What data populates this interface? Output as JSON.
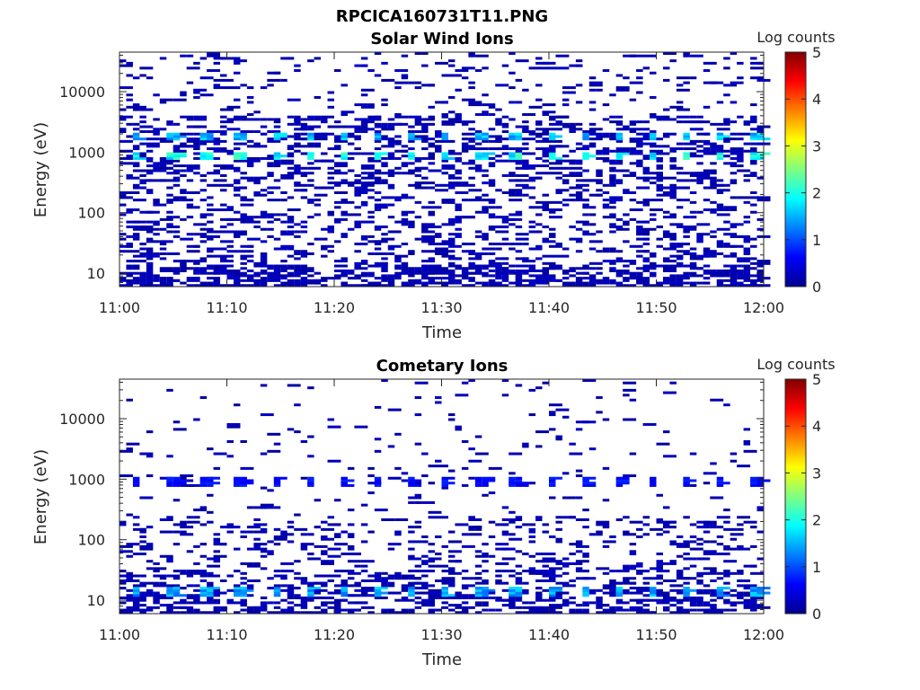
{
  "figure_title": "RPCICA160731T11.PNG",
  "colors": {
    "colormap": "jet",
    "colormap_stops": [
      "#00008f",
      "#0000ff",
      "#0080ff",
      "#00ffff",
      "#80ff80",
      "#ffff00",
      "#ff8000",
      "#ff0000",
      "#800000"
    ],
    "axes": "#262626",
    "background": "#ffffff"
  },
  "chart_data": [
    {
      "type": "heatmap",
      "title": "Solar Wind Ions",
      "xlabel": "Time",
      "ylabel": "Energy (eV)",
      "x_ticks": [
        "11:00",
        "11:10",
        "11:20",
        "11:30",
        "11:40",
        "11:50",
        "12:00"
      ],
      "x_range": [
        "11:00",
        "12:00"
      ],
      "y_scale": "log",
      "y_range": [
        6,
        45000
      ],
      "y_ticks": [
        "10",
        "100",
        "1000",
        "10000"
      ],
      "colorbar": {
        "label": "Log counts",
        "range": [
          0,
          5
        ],
        "ticks": [
          "0",
          "1",
          "2",
          "3",
          "4",
          "5"
        ]
      },
      "time_bins": 96,
      "energy_bins": 96,
      "scan_period_min": 3.2,
      "cycle_offset_min": 1.0,
      "peak_bands": [
        {
          "energy_ev": 880,
          "log_counts": 2.0
        },
        {
          "energy_ev": 1800,
          "log_counts": 1.6
        }
      ],
      "background_log_counts": 0.1,
      "low_energy_fill": "dense",
      "grid": false
    },
    {
      "type": "heatmap",
      "title": "Cometary Ions",
      "xlabel": "Time",
      "ylabel": "Energy (eV)",
      "x_ticks": [
        "11:00",
        "11:10",
        "11:20",
        "11:30",
        "11:40",
        "11:50",
        "12:00"
      ],
      "x_range": [
        "11:00",
        "12:00"
      ],
      "y_scale": "log",
      "y_range": [
        6,
        45000
      ],
      "y_ticks": [
        "10",
        "100",
        "1000",
        "10000"
      ],
      "colorbar": {
        "label": "Log counts",
        "range": [
          0,
          5
        ],
        "ticks": [
          "0",
          "1",
          "2",
          "3",
          "4",
          "5"
        ]
      },
      "time_bins": 96,
      "energy_bins": 96,
      "scan_period_min": 3.2,
      "cycle_offset_min": 1.0,
      "peak_bands": [
        {
          "energy_ev": 14,
          "log_counts": 1.5
        },
        {
          "energy_ev": 900,
          "log_counts": 0.7
        }
      ],
      "background_log_counts": 0.1,
      "low_energy_fill": "medium",
      "grid": false
    }
  ]
}
